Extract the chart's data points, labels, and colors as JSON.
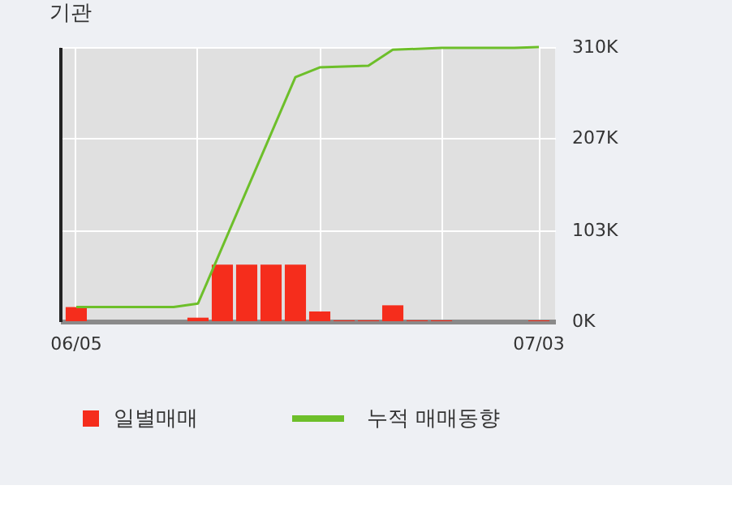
{
  "chart_data": {
    "type": "bar",
    "title": "기관",
    "categories": [
      "06/05",
      null,
      null,
      null,
      null,
      null,
      null,
      null,
      null,
      null,
      null,
      null,
      null,
      null,
      null,
      null,
      null,
      null,
      null,
      "07/03"
    ],
    "series": [
      {
        "name": "일별매매",
        "color": "#f52d1c",
        "values": [
          16,
          0,
          0,
          0,
          0,
          4,
          64,
          64,
          64,
          64,
          11,
          1,
          1,
          18,
          1,
          1,
          0,
          0,
          0,
          1
        ]
      },
      {
        "name": "누적 매매동향",
        "type": "line",
        "color": "#6dbf2a",
        "values": [
          16,
          16,
          16,
          16,
          16,
          20,
          84,
          148,
          212,
          276,
          287,
          288,
          289,
          307,
          308,
          309,
          309,
          309,
          309,
          310
        ]
      }
    ],
    "ylim": [
      0,
      310
    ],
    "yticks": [
      {
        "value": 0,
        "label": "0K"
      },
      {
        "value": 103,
        "label": "103K"
      },
      {
        "value": 207,
        "label": "207K"
      },
      {
        "value": 310,
        "label": "310K"
      }
    ],
    "grid": true,
    "legend": "bottom"
  }
}
